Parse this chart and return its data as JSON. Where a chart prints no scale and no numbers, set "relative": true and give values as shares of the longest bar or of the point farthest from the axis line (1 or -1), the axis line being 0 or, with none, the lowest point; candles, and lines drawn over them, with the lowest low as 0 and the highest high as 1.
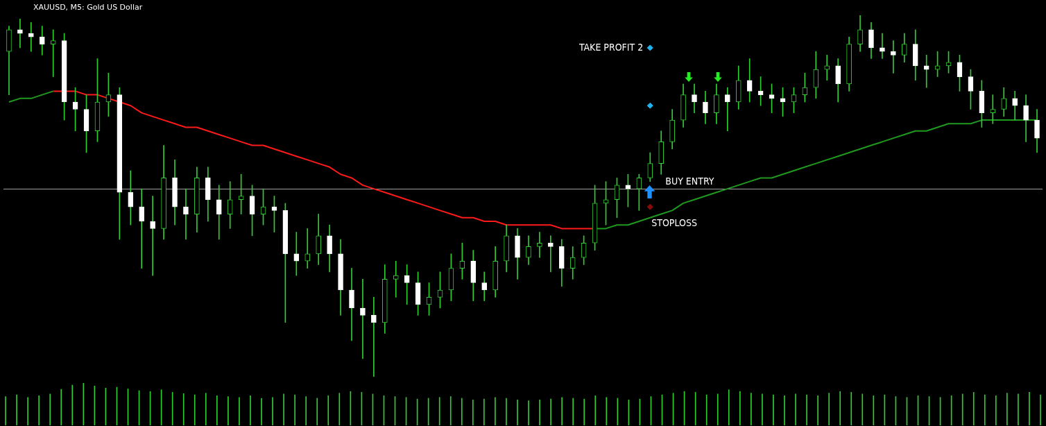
{
  "chart_data": [
    {
      "type": "candlestick",
      "title": "XAUUSD, M5:  Gold US Dollar",
      "relative": true,
      "color": "#32cd32",
      "colors": [
        "#32cd32",
        "#ffffff",
        "#ffffff",
        "#ffffff",
        "#32cd32",
        "#ffffff",
        "#ffffff",
        "#ffffff",
        "#32cd32",
        "#32cd32",
        "#ffffff",
        "#ffffff",
        "#ffffff",
        "#ffffff",
        "#32cd32",
        "#ffffff",
        "#ffffff",
        "#32cd32",
        "#ffffff",
        "#ffffff",
        "#32cd32",
        "#32cd32",
        "#ffffff",
        "#32cd32",
        "#ffffff",
        "#ffffff",
        "#ffffff",
        "#32cd32",
        "#32cd32",
        "#ffffff",
        "#ffffff",
        "#ffffff",
        "#ffffff",
        "#ffffff",
        "#32cd32",
        "#32cd32",
        "#ffffff",
        "#ffffff",
        "#32cd32",
        "#32cd32",
        "#32cd32",
        "#32cd32",
        "#ffffff",
        "#ffffff",
        "#32cd32",
        "#32cd32",
        "#ffffff",
        "#32cd32",
        "#32cd32",
        "#ffffff",
        "#ffffff",
        "#32cd32",
        "#32cd32",
        "#32cd32",
        "#32cd32",
        "#32cd32",
        "#ffffff",
        "#32cd32",
        "#32cd32",
        "#32cd32",
        "#32cd32",
        "#32cd32",
        "#ffffff",
        "#ffffff",
        "#32cd32",
        "#ffffff",
        "#32cd32",
        "#ffffff",
        "#ffffff",
        "#ffffff",
        "#ffffff",
        "#32cd32",
        "#32cd32",
        "#32cd32",
        "#32cd32",
        "#ffffff",
        "#32cd32",
        "#32cd32",
        "#ffffff",
        "#ffffff",
        "#ffffff",
        "#32cd32",
        "#ffffff",
        "#ffffff",
        "#32cd32",
        "#32cd32",
        "#ffffff",
        "#ffffff",
        "#ffffff",
        "#32cd32",
        "#32cd32",
        "#ffffff",
        "#ffffff",
        "#ffffff"
      ],
      "categories": [
        null,
        null,
        null,
        null,
        null,
        null,
        null,
        null,
        null,
        null,
        null,
        null,
        null,
        null,
        null,
        null,
        null,
        null,
        null,
        null,
        null,
        null,
        null,
        null,
        null,
        null,
        null,
        null,
        null,
        null,
        null,
        null,
        null,
        null,
        null,
        null,
        null,
        null,
        null,
        null,
        null,
        null,
        null,
        null,
        null,
        null,
        null,
        null,
        null,
        null,
        null,
        null,
        null,
        null,
        null,
        null,
        null,
        null,
        null,
        null,
        null,
        null,
        null,
        null,
        null,
        null,
        null,
        null,
        null,
        null,
        null,
        null,
        null,
        null,
        null,
        null,
        null,
        null,
        null,
        null,
        null,
        null,
        null,
        null,
        null,
        null,
        null,
        null,
        null,
        null,
        null,
        null,
        null,
        null
      ],
      "ohlc": [
        [
          0.9,
          0.97,
          0.78,
          0.96
        ],
        [
          0.96,
          0.99,
          0.91,
          0.95
        ],
        [
          0.95,
          0.98,
          0.9,
          0.94
        ],
        [
          0.94,
          0.97,
          0.89,
          0.92
        ],
        [
          0.92,
          0.96,
          0.83,
          0.93
        ],
        [
          0.93,
          0.95,
          0.71,
          0.76
        ],
        [
          0.76,
          0.8,
          0.68,
          0.74
        ],
        [
          0.74,
          0.78,
          0.62,
          0.68
        ],
        [
          0.68,
          0.88,
          0.65,
          0.76
        ],
        [
          0.76,
          0.84,
          0.72,
          0.78
        ],
        [
          0.78,
          0.8,
          0.38,
          0.51
        ],
        [
          0.51,
          0.57,
          0.42,
          0.47
        ],
        [
          0.47,
          0.52,
          0.3,
          0.43
        ],
        [
          0.43,
          0.5,
          0.28,
          0.41
        ],
        [
          0.41,
          0.64,
          0.38,
          0.55
        ],
        [
          0.55,
          0.6,
          0.42,
          0.47
        ],
        [
          0.47,
          0.52,
          0.38,
          0.45
        ],
        [
          0.45,
          0.58,
          0.4,
          0.55
        ],
        [
          0.55,
          0.58,
          0.43,
          0.49
        ],
        [
          0.49,
          0.53,
          0.38,
          0.45
        ],
        [
          0.45,
          0.54,
          0.41,
          0.49
        ],
        [
          0.49,
          0.56,
          0.45,
          0.5
        ],
        [
          0.5,
          0.53,
          0.39,
          0.45
        ],
        [
          0.45,
          0.52,
          0.42,
          0.47
        ],
        [
          0.47,
          0.5,
          0.4,
          0.46
        ],
        [
          0.46,
          0.48,
          0.15,
          0.34
        ],
        [
          0.34,
          0.4,
          0.28,
          0.32
        ],
        [
          0.32,
          0.41,
          0.3,
          0.34
        ],
        [
          0.34,
          0.45,
          0.31,
          0.39
        ],
        [
          0.39,
          0.42,
          0.29,
          0.34
        ],
        [
          0.34,
          0.38,
          0.17,
          0.24
        ],
        [
          0.24,
          0.3,
          0.1,
          0.19
        ],
        [
          0.19,
          0.27,
          0.05,
          0.17
        ],
        [
          0.17,
          0.22,
          0.0,
          0.15
        ],
        [
          0.15,
          0.31,
          0.12,
          0.27
        ],
        [
          0.27,
          0.32,
          0.22,
          0.28
        ],
        [
          0.28,
          0.31,
          0.2,
          0.26
        ],
        [
          0.26,
          0.29,
          0.17,
          0.2
        ],
        [
          0.2,
          0.26,
          0.17,
          0.22
        ],
        [
          0.22,
          0.29,
          0.19,
          0.24
        ],
        [
          0.24,
          0.34,
          0.21,
          0.3
        ],
        [
          0.3,
          0.37,
          0.27,
          0.32
        ],
        [
          0.32,
          0.35,
          0.21,
          0.26
        ],
        [
          0.26,
          0.29,
          0.21,
          0.24
        ],
        [
          0.24,
          0.36,
          0.22,
          0.32
        ],
        [
          0.32,
          0.42,
          0.29,
          0.39
        ],
        [
          0.39,
          0.41,
          0.27,
          0.33
        ],
        [
          0.33,
          0.39,
          0.31,
          0.36
        ],
        [
          0.36,
          0.4,
          0.33,
          0.37
        ],
        [
          0.37,
          0.39,
          0.29,
          0.36
        ],
        [
          0.36,
          0.38,
          0.25,
          0.3
        ],
        [
          0.3,
          0.36,
          0.27,
          0.33
        ],
        [
          0.33,
          0.39,
          0.31,
          0.37
        ],
        [
          0.37,
          0.53,
          0.35,
          0.48
        ],
        [
          0.48,
          0.54,
          0.42,
          0.49
        ],
        [
          0.49,
          0.55,
          0.44,
          0.53
        ],
        [
          0.53,
          0.56,
          0.47,
          0.52
        ],
        [
          0.52,
          0.56,
          0.46,
          0.55
        ],
        [
          0.55,
          0.62,
          0.54,
          0.59
        ],
        [
          0.59,
          0.68,
          0.56,
          0.65
        ],
        [
          0.65,
          0.74,
          0.63,
          0.71
        ],
        [
          0.71,
          0.81,
          0.69,
          0.78
        ],
        [
          0.78,
          0.81,
          0.73,
          0.76
        ],
        [
          0.76,
          0.79,
          0.7,
          0.73
        ],
        [
          0.73,
          0.81,
          0.7,
          0.78
        ],
        [
          0.78,
          0.8,
          0.68,
          0.76
        ],
        [
          0.76,
          0.86,
          0.74,
          0.82
        ],
        [
          0.82,
          0.88,
          0.76,
          0.79
        ],
        [
          0.79,
          0.83,
          0.75,
          0.78
        ],
        [
          0.78,
          0.81,
          0.73,
          0.77
        ],
        [
          0.77,
          0.8,
          0.72,
          0.76
        ],
        [
          0.76,
          0.8,
          0.73,
          0.78
        ],
        [
          0.78,
          0.84,
          0.76,
          0.8
        ],
        [
          0.8,
          0.9,
          0.77,
          0.85
        ],
        [
          0.85,
          0.89,
          0.82,
          0.86
        ],
        [
          0.86,
          0.88,
          0.76,
          0.81
        ],
        [
          0.81,
          0.94,
          0.79,
          0.92
        ],
        [
          0.92,
          1.0,
          0.9,
          0.96
        ],
        [
          0.96,
          0.98,
          0.88,
          0.91
        ],
        [
          0.91,
          0.95,
          0.88,
          0.9
        ],
        [
          0.9,
          0.93,
          0.84,
          0.89
        ],
        [
          0.89,
          0.95,
          0.87,
          0.92
        ],
        [
          0.92,
          0.96,
          0.82,
          0.86
        ],
        [
          0.86,
          0.89,
          0.8,
          0.85
        ],
        [
          0.85,
          0.9,
          0.83,
          0.86
        ],
        [
          0.86,
          0.9,
          0.84,
          0.87
        ],
        [
          0.87,
          0.89,
          0.79,
          0.83
        ],
        [
          0.83,
          0.85,
          0.74,
          0.79
        ],
        [
          0.79,
          0.82,
          0.69,
          0.73
        ],
        [
          0.73,
          0.78,
          0.7,
          0.74
        ],
        [
          0.74,
          0.8,
          0.72,
          0.77
        ],
        [
          0.77,
          0.79,
          0.71,
          0.75
        ],
        [
          0.75,
          0.78,
          0.65,
          0.71
        ],
        [
          0.71,
          0.74,
          0.62,
          0.66
        ]
      ],
      "series": [
        {
          "type": "line",
          "color": "#ff1a1a",
          "values": [
            null,
            null,
            null,
            null,
            0.79,
            0.79,
            0.79,
            0.78,
            0.78,
            0.77,
            0.76,
            0.75,
            0.73,
            0.72,
            0.71,
            0.7,
            0.69,
            0.69,
            0.68,
            0.67,
            0.66,
            0.65,
            0.64,
            0.64,
            0.63,
            0.62,
            0.61,
            0.6,
            0.59,
            0.58,
            0.56,
            0.55,
            0.53,
            0.52,
            0.51,
            0.5,
            0.49,
            0.48,
            0.47,
            0.46,
            0.45,
            0.44,
            0.44,
            0.43,
            0.43,
            0.42,
            0.42,
            0.42,
            0.42,
            0.42,
            0.41,
            0.41,
            0.41,
            0.41,
            null,
            null,
            null,
            null,
            null,
            null,
            null,
            null,
            null,
            null,
            null,
            null,
            null,
            null,
            null,
            null,
            null,
            null,
            null,
            null,
            null,
            null,
            null,
            null,
            null,
            null,
            null,
            null,
            null,
            null,
            null,
            null,
            null,
            null,
            null,
            null,
            null,
            null,
            null,
            null
          ]
        },
        {
          "type": "line",
          "color": "#1f9a1f",
          "values": [
            0.76,
            0.77,
            0.77,
            0.78,
            0.79,
            null,
            null,
            null,
            null,
            null,
            null,
            null,
            null,
            null,
            null,
            null,
            null,
            null,
            null,
            null,
            null,
            null,
            null,
            null,
            null,
            null,
            null,
            null,
            null,
            null,
            null,
            null,
            null,
            null,
            null,
            null,
            null,
            null,
            null,
            null,
            null,
            null,
            null,
            null,
            null,
            null,
            null,
            null,
            null,
            null,
            null,
            null,
            null,
            0.41,
            0.41,
            0.42,
            0.42,
            0.43,
            0.44,
            0.45,
            0.46,
            0.48,
            0.49,
            0.5,
            0.51,
            0.52,
            0.53,
            0.54,
            0.55,
            0.55,
            0.56,
            0.57,
            0.58,
            0.59,
            0.6,
            0.61,
            0.62,
            0.63,
            0.64,
            0.65,
            0.66,
            0.67,
            0.68,
            0.68,
            0.69,
            0.7,
            0.7,
            0.7,
            0.71,
            0.71,
            0.71,
            0.71,
            0.71,
            0.71
          ]
        },
        {
          "type": "scatter",
          "marker": "diamond",
          "color": "#1eb4f0",
          "values": [
            null,
            null,
            null,
            null,
            null,
            null,
            null,
            null,
            null,
            null,
            null,
            null,
            null,
            null,
            null,
            null,
            null,
            null,
            null,
            null,
            null,
            null,
            null,
            null,
            null,
            null,
            null,
            null,
            null,
            null,
            null,
            null,
            null,
            null,
            null,
            null,
            null,
            null,
            null,
            null,
            null,
            null,
            null,
            null,
            null,
            null,
            null,
            null,
            null,
            null,
            null,
            null,
            null,
            null,
            null,
            null,
            null,
            null,
            0.91,
            null,
            null,
            null,
            null,
            null,
            null,
            null,
            null,
            null,
            null,
            null,
            null,
            null,
            null,
            null,
            null,
            null,
            null,
            null,
            null,
            null,
            null,
            null,
            null,
            null,
            null,
            null,
            null,
            null,
            null,
            null,
            null,
            null,
            null,
            null
          ]
        },
        {
          "type": "scatter",
          "marker": "diamond",
          "color": "#1eb4f0",
          "values": [
            null,
            null,
            null,
            null,
            null,
            null,
            null,
            null,
            null,
            null,
            null,
            null,
            null,
            null,
            null,
            null,
            null,
            null,
            null,
            null,
            null,
            null,
            null,
            null,
            null,
            null,
            null,
            null,
            null,
            null,
            null,
            null,
            null,
            null,
            null,
            null,
            null,
            null,
            null,
            null,
            null,
            null,
            null,
            null,
            null,
            null,
            null,
            null,
            null,
            null,
            null,
            null,
            null,
            null,
            null,
            null,
            null,
            null,
            0.75,
            null,
            null,
            null,
            null,
            null,
            null,
            null,
            null,
            null,
            null,
            null,
            null,
            null,
            null,
            null,
            null,
            null,
            null,
            null,
            null,
            null,
            null,
            null,
            null,
            null,
            null,
            null,
            null,
            null,
            null,
            null,
            null,
            null,
            null,
            null
          ]
        },
        {
          "type": "scatter",
          "marker": "diamond",
          "color": "#8b0a0a",
          "values": [
            null,
            null,
            null,
            null,
            null,
            null,
            null,
            null,
            null,
            null,
            null,
            null,
            null,
            null,
            null,
            null,
            null,
            null,
            null,
            null,
            null,
            null,
            null,
            null,
            null,
            null,
            null,
            null,
            null,
            null,
            null,
            null,
            null,
            null,
            null,
            null,
            null,
            null,
            null,
            null,
            null,
            null,
            null,
            null,
            null,
            null,
            null,
            null,
            null,
            null,
            null,
            null,
            null,
            null,
            null,
            null,
            null,
            null,
            0.47,
            null,
            null,
            null,
            null,
            null,
            null,
            null,
            null,
            null,
            null,
            null,
            null,
            null,
            null,
            null,
            null,
            null,
            null,
            null,
            null,
            null,
            null,
            null,
            null,
            null,
            null,
            null,
            null,
            null,
            null,
            null,
            null,
            null,
            null,
            null
          ]
        }
      ],
      "ref_lines": [
        {
          "axis": "y",
          "value": 0.52,
          "color": "#a0a0a0"
        }
      ],
      "annotations": [
        "TAKE PROFIT 2",
        "BUY ENTRY",
        "STOPLOSS"
      ]
    },
    {
      "type": "bar",
      "relative": true,
      "color": "#32cd32",
      "categories": [
        null,
        null,
        null,
        null,
        null,
        null,
        null,
        null,
        null,
        null,
        null,
        null,
        null,
        null,
        null,
        null,
        null,
        null,
        null,
        null,
        null,
        null,
        null,
        null,
        null,
        null,
        null,
        null,
        null,
        null,
        null,
        null,
        null,
        null,
        null,
        null,
        null,
        null,
        null,
        null,
        null,
        null,
        null,
        null,
        null,
        null,
        null,
        null,
        null,
        null,
        null,
        null,
        null,
        null,
        null,
        null,
        null,
        null,
        null,
        null,
        null,
        null,
        null,
        null,
        null,
        null,
        null,
        null,
        null,
        null,
        null,
        null,
        null,
        null,
        null,
        null,
        null,
        null,
        null,
        null,
        null,
        null,
        null,
        null,
        null,
        null,
        null,
        null,
        null,
        null,
        null,
        null,
        null,
        null
      ],
      "values": [
        0.68,
        0.72,
        0.66,
        0.7,
        0.74,
        0.85,
        0.95,
        1.0,
        0.93,
        0.88,
        0.9,
        0.86,
        0.82,
        0.8,
        0.84,
        0.78,
        0.75,
        0.72,
        0.76,
        0.7,
        0.68,
        0.66,
        0.7,
        0.64,
        0.66,
        0.74,
        0.72,
        0.68,
        0.64,
        0.7,
        0.76,
        0.8,
        0.78,
        0.74,
        0.7,
        0.68,
        0.66,
        0.62,
        0.64,
        0.66,
        0.68,
        0.64,
        0.6,
        0.62,
        0.66,
        0.64,
        0.6,
        0.58,
        0.6,
        0.62,
        0.66,
        0.64,
        0.62,
        0.7,
        0.66,
        0.64,
        0.6,
        0.62,
        0.68,
        0.72,
        0.76,
        0.8,
        0.78,
        0.72,
        0.74,
        0.84,
        0.8,
        0.76,
        0.74,
        0.72,
        0.7,
        0.74,
        0.72,
        0.7,
        0.76,
        0.8,
        0.78,
        0.74,
        0.7,
        0.72,
        0.68,
        0.66,
        0.7,
        0.68,
        0.66,
        0.7,
        0.74,
        0.78,
        0.72,
        0.7,
        0.76,
        0.74,
        0.78,
        0.72
      ]
    }
  ]
}
